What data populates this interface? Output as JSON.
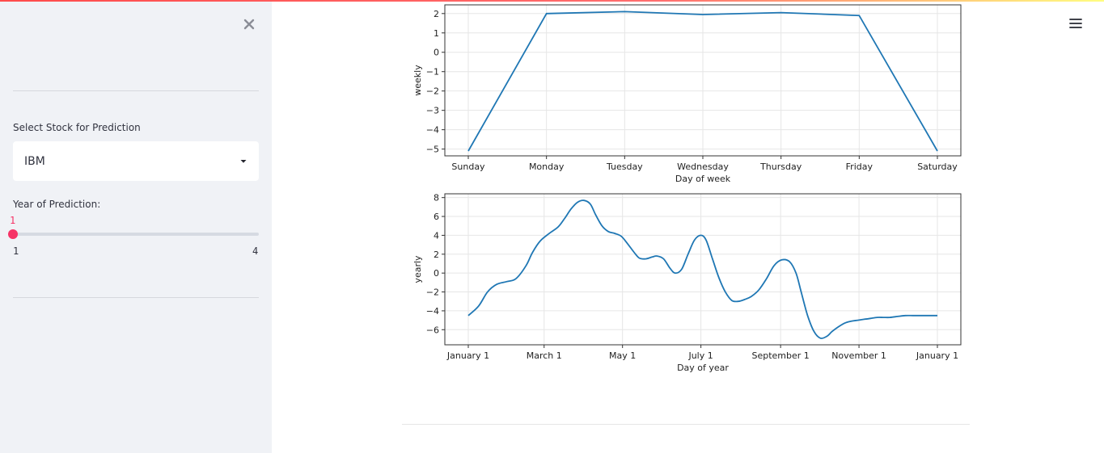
{
  "sidebar": {
    "close_icon": "close-icon",
    "select_label": "Select Stock for Prediction",
    "select_value": "IBM",
    "slider_label": "Year of Prediction:",
    "slider_value": "1",
    "slider_min": "1",
    "slider_max": "4",
    "slider_fraction": 0
  },
  "header": {
    "menu_icon": "hamburger-menu-icon"
  },
  "colors": {
    "accent": "#f63366",
    "line": "#1f77b4",
    "sidebar_bg": "#f0f2f6"
  },
  "chart_data": [
    {
      "type": "line",
      "xlabel": "Day of week",
      "ylabel": "weekly",
      "categories": [
        "Sunday",
        "Monday",
        "Tuesday",
        "Wednesday",
        "Thursday",
        "Friday",
        "Saturday"
      ],
      "values": [
        -5.1,
        2.0,
        2.1,
        1.95,
        2.05,
        1.9,
        -5.1
      ],
      "ylim": [
        -5.35,
        2.45
      ],
      "yticks": [
        "2",
        "1",
        "0",
        "−1",
        "−2",
        "−3",
        "−4",
        "−5"
      ],
      "grid": true
    },
    {
      "type": "line",
      "xlabel": "Day of year",
      "ylabel": "yearly",
      "xticks": [
        "January 1",
        "March 1",
        "May 1",
        "July 1",
        "September 1",
        "November 1",
        "January 1"
      ],
      "x": [
        0,
        8,
        15,
        22,
        30,
        37,
        45,
        50,
        56,
        63,
        70,
        75,
        80,
        85,
        90,
        95,
        99,
        104,
        109,
        114,
        119,
        124,
        129,
        133,
        138,
        143,
        147,
        152,
        157,
        161,
        166,
        171,
        176,
        181,
        185,
        190,
        195,
        200,
        205,
        210,
        215,
        220,
        226,
        232,
        238,
        244,
        250,
        255,
        259,
        264,
        269,
        274,
        279,
        283,
        288,
        293,
        298,
        303,
        308,
        313,
        318,
        323,
        328,
        334,
        340,
        346,
        352,
        358,
        365
      ],
      "y": [
        -4.5,
        -3.5,
        -2.0,
        -1.2,
        -0.9,
        -0.6,
        0.8,
        2.2,
        3.4,
        4.2,
        4.9,
        5.8,
        6.8,
        7.5,
        7.7,
        7.3,
        6.2,
        5.0,
        4.4,
        4.2,
        3.9,
        3.1,
        2.2,
        1.6,
        1.5,
        1.7,
        1.8,
        1.5,
        0.5,
        0.0,
        0.4,
        2.0,
        3.5,
        4.0,
        3.5,
        1.5,
        -0.5,
        -2.0,
        -2.9,
        -3.0,
        -2.8,
        -2.5,
        -1.8,
        -0.6,
        0.8,
        1.4,
        1.2,
        0.0,
        -2.0,
        -4.5,
        -6.2,
        -6.9,
        -6.7,
        -6.2,
        -5.7,
        -5.3,
        -5.1,
        -5.0,
        -4.9,
        -4.8,
        -4.7,
        -4.7,
        -4.7,
        -4.6,
        -4.5,
        -4.5,
        -4.5,
        -4.5,
        -4.5
      ],
      "ylim": [
        -7.6,
        8.4
      ],
      "yticks": [
        "8",
        "6",
        "4",
        "2",
        "0",
        "−2",
        "−4",
        "−6"
      ],
      "grid": true
    }
  ]
}
